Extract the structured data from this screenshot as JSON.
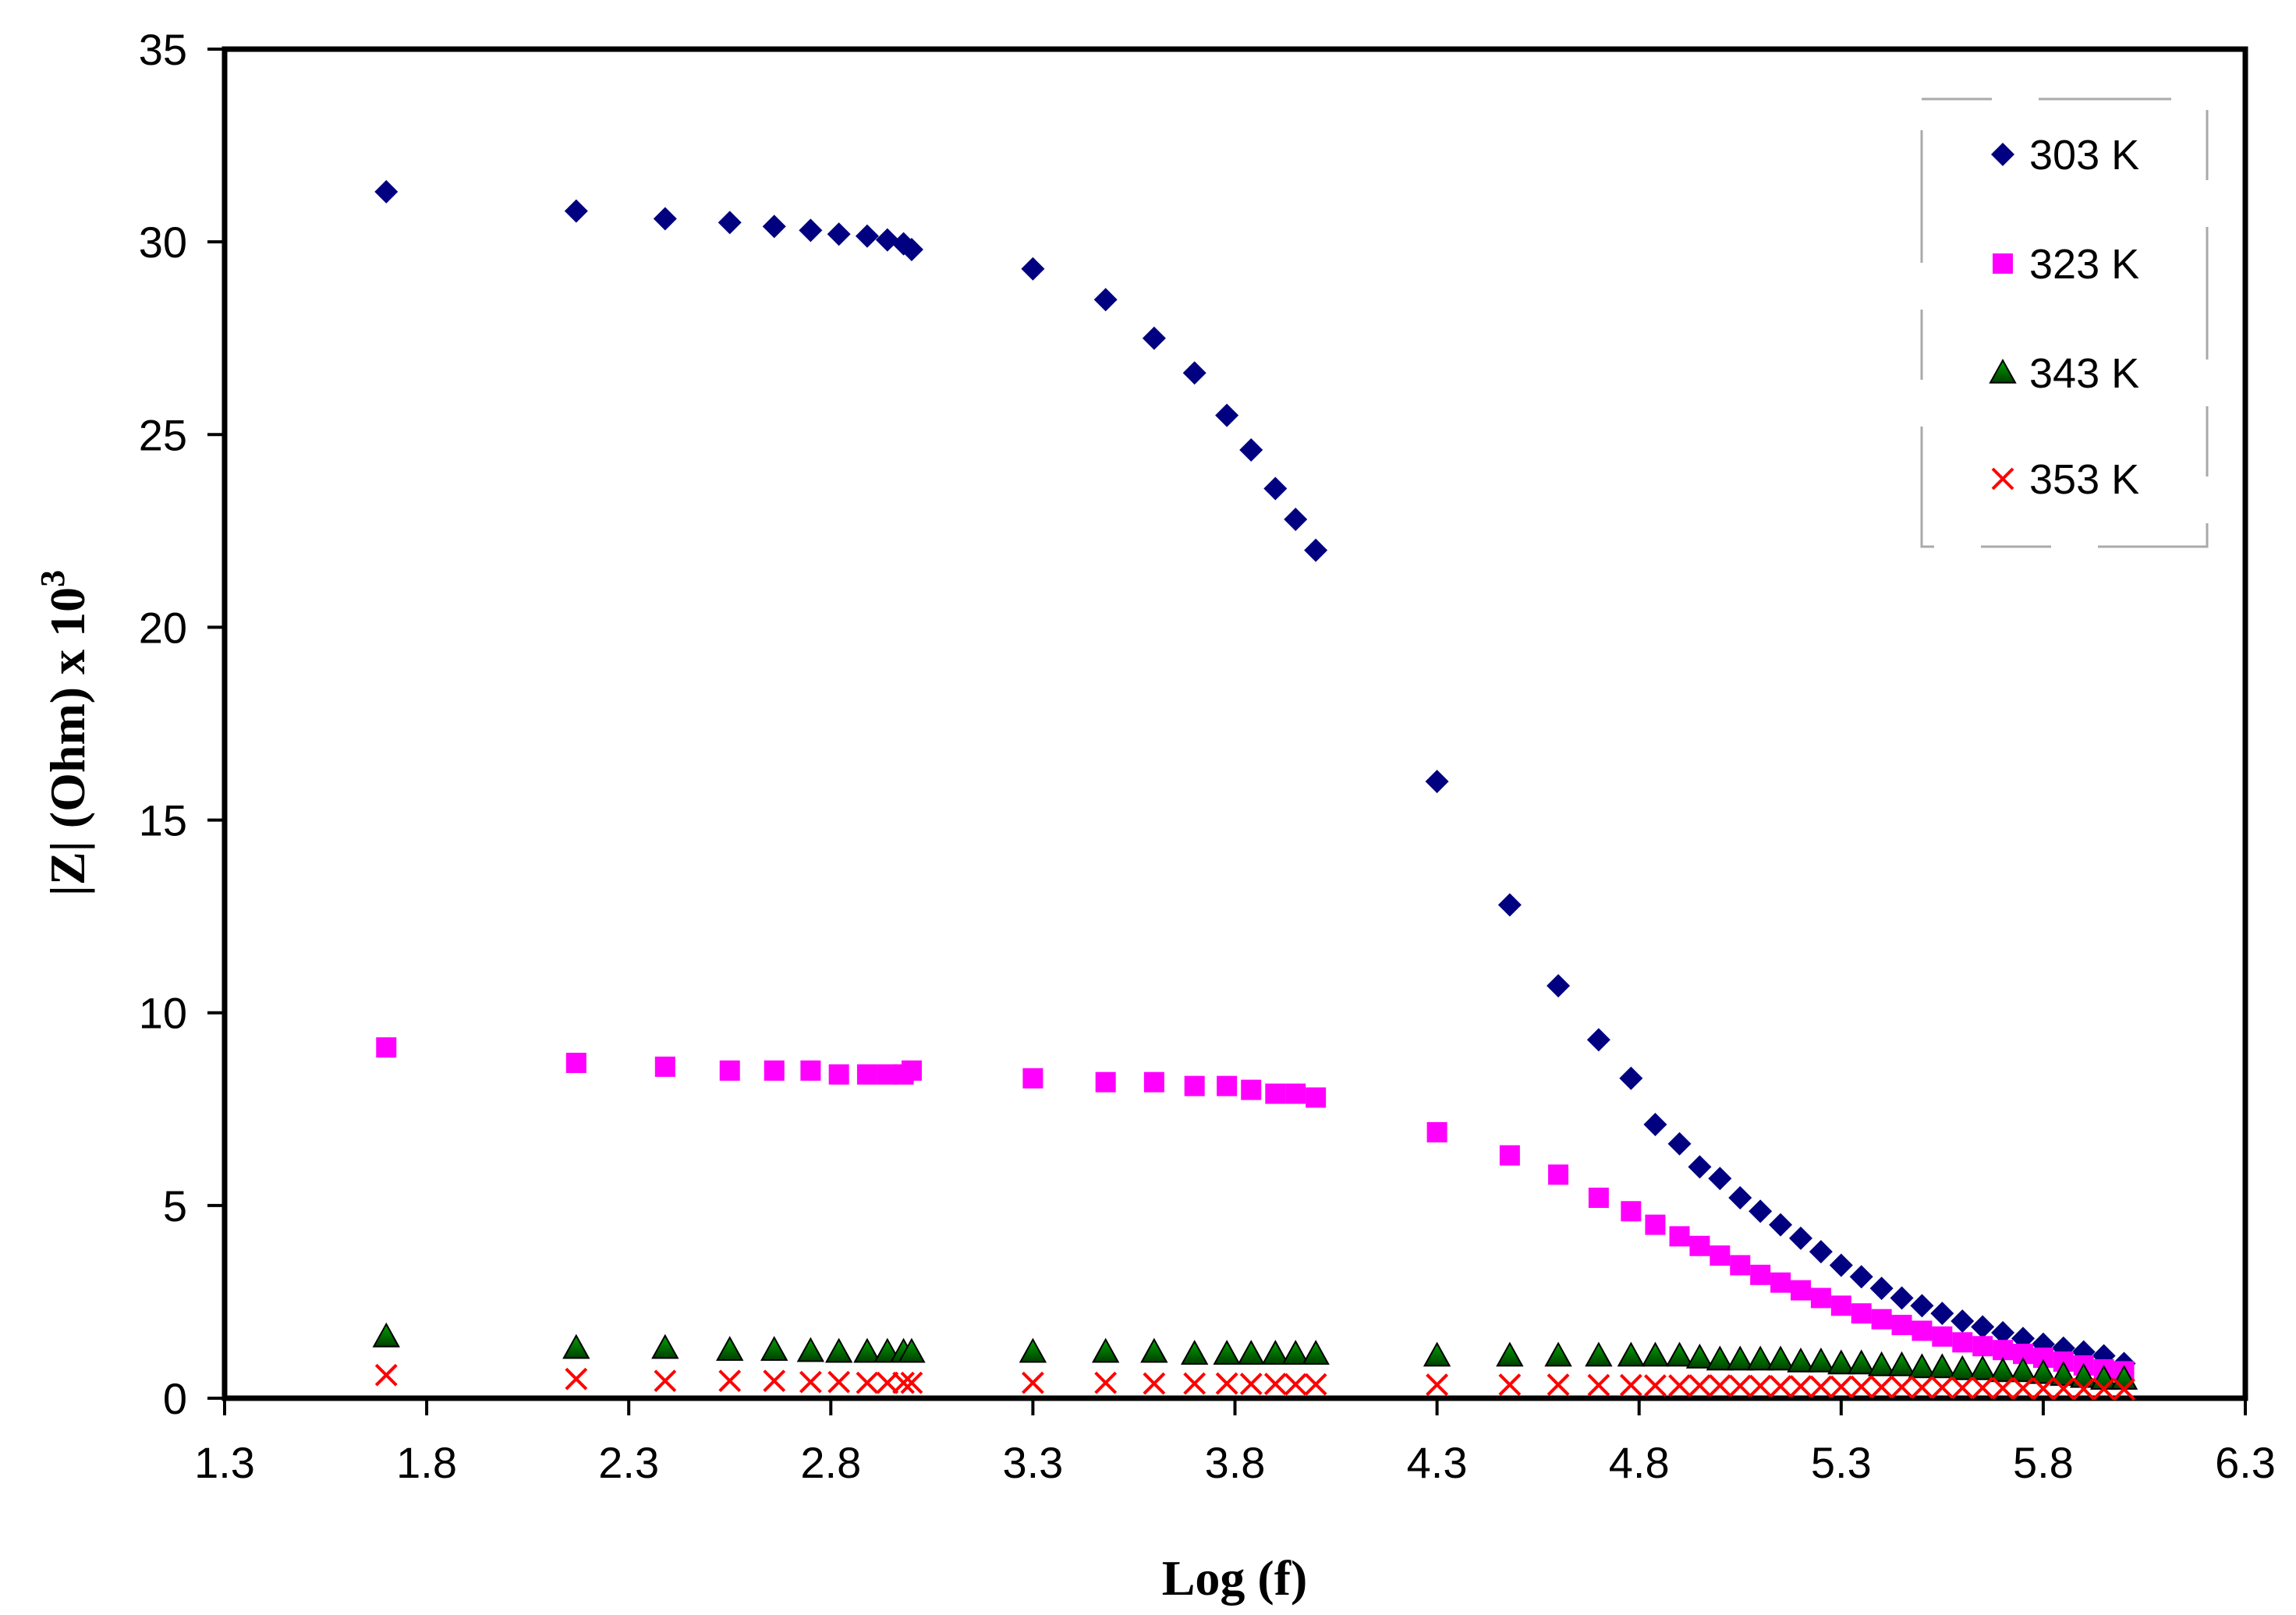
{
  "chart_data": {
    "type": "scatter",
    "title": "",
    "xlabel": "Log (f)",
    "ylabel_main": "|Z| (Ohm) x 10",
    "ylabel_exp": "3",
    "xlim": [
      1.3,
      6.3
    ],
    "ylim": [
      0,
      35
    ],
    "xticks": [
      "1.3",
      "1.8",
      "2.3",
      "2.8",
      "3.3",
      "3.8",
      "4.3",
      "4.8",
      "5.3",
      "5.8",
      "6.3"
    ],
    "yticks": [
      "0",
      "5",
      "10",
      "15",
      "20",
      "25",
      "30",
      "35"
    ],
    "grid": false,
    "legend_position": "top-right",
    "x": [
      1.7,
      2.17,
      2.39,
      2.55,
      2.66,
      2.75,
      2.82,
      2.89,
      2.94,
      2.98,
      3.0,
      3.3,
      3.48,
      3.6,
      3.7,
      3.78,
      3.84,
      3.9,
      3.95,
      4.0,
      4.3,
      4.48,
      4.6,
      4.7,
      4.78,
      4.84,
      4.9,
      4.95,
      5.0,
      5.05,
      5.1,
      5.15,
      5.2,
      5.25,
      5.3,
      5.35,
      5.4,
      5.45,
      5.5,
      5.55,
      5.6,
      5.65,
      5.7,
      5.75,
      5.8,
      5.85,
      5.9,
      5.95,
      6.0
    ],
    "series": [
      {
        "name": "303 K",
        "marker": "diamond",
        "color": "#000080",
        "values": [
          31.3,
          30.8,
          30.6,
          30.5,
          30.4,
          30.3,
          30.2,
          30.15,
          30.05,
          29.95,
          29.8,
          29.3,
          28.5,
          27.5,
          26.6,
          25.5,
          24.6,
          23.6,
          22.8,
          22.0,
          16.0,
          12.8,
          10.7,
          9.3,
          8.3,
          7.1,
          6.6,
          6.0,
          5.7,
          5.2,
          4.85,
          4.5,
          4.15,
          3.8,
          3.45,
          3.15,
          2.85,
          2.6,
          2.4,
          2.2,
          2.0,
          1.85,
          1.7,
          1.55,
          1.4,
          1.3,
          1.2,
          1.1,
          0.9
        ]
      },
      {
        "name": "323 K",
        "marker": "square",
        "color": "#FF00FF",
        "values": [
          9.1,
          8.7,
          8.6,
          8.5,
          8.5,
          8.5,
          8.4,
          8.4,
          8.4,
          8.4,
          8.5,
          8.3,
          8.2,
          8.2,
          8.1,
          8.1,
          8.0,
          7.9,
          7.9,
          7.8,
          6.9,
          6.3,
          5.8,
          5.2,
          4.85,
          4.5,
          4.2,
          3.95,
          3.7,
          3.45,
          3.2,
          3.0,
          2.8,
          2.6,
          2.4,
          2.2,
          2.05,
          1.9,
          1.75,
          1.6,
          1.45,
          1.35,
          1.25,
          1.15,
          1.05,
          0.95,
          0.85,
          0.75,
          0.7
        ]
      },
      {
        "name": "343 K",
        "marker": "triangle",
        "color": "#008000",
        "values": [
          1.6,
          1.3,
          1.3,
          1.25,
          1.25,
          1.22,
          1.2,
          1.2,
          1.2,
          1.2,
          1.2,
          1.2,
          1.2,
          1.2,
          1.15,
          1.15,
          1.15,
          1.15,
          1.15,
          1.15,
          1.1,
          1.1,
          1.1,
          1.1,
          1.1,
          1.1,
          1.1,
          1.05,
          1.0,
          1.0,
          1.0,
          1.0,
          0.95,
          0.95,
          0.9,
          0.9,
          0.85,
          0.85,
          0.8,
          0.8,
          0.75,
          0.75,
          0.7,
          0.7,
          0.65,
          0.6,
          0.55,
          0.5,
          0.5
        ]
      },
      {
        "name": "353 K",
        "marker": "x",
        "color": "#FF0000",
        "values": [
          0.6,
          0.5,
          0.45,
          0.45,
          0.45,
          0.42,
          0.42,
          0.4,
          0.4,
          0.4,
          0.4,
          0.4,
          0.4,
          0.38,
          0.38,
          0.38,
          0.37,
          0.37,
          0.36,
          0.36,
          0.35,
          0.35,
          0.35,
          0.34,
          0.34,
          0.33,
          0.33,
          0.33,
          0.33,
          0.32,
          0.32,
          0.31,
          0.31,
          0.3,
          0.3,
          0.3,
          0.29,
          0.29,
          0.28,
          0.28,
          0.27,
          0.27,
          0.26,
          0.26,
          0.25,
          0.25,
          0.24,
          0.24,
          0.23
        ]
      }
    ]
  }
}
